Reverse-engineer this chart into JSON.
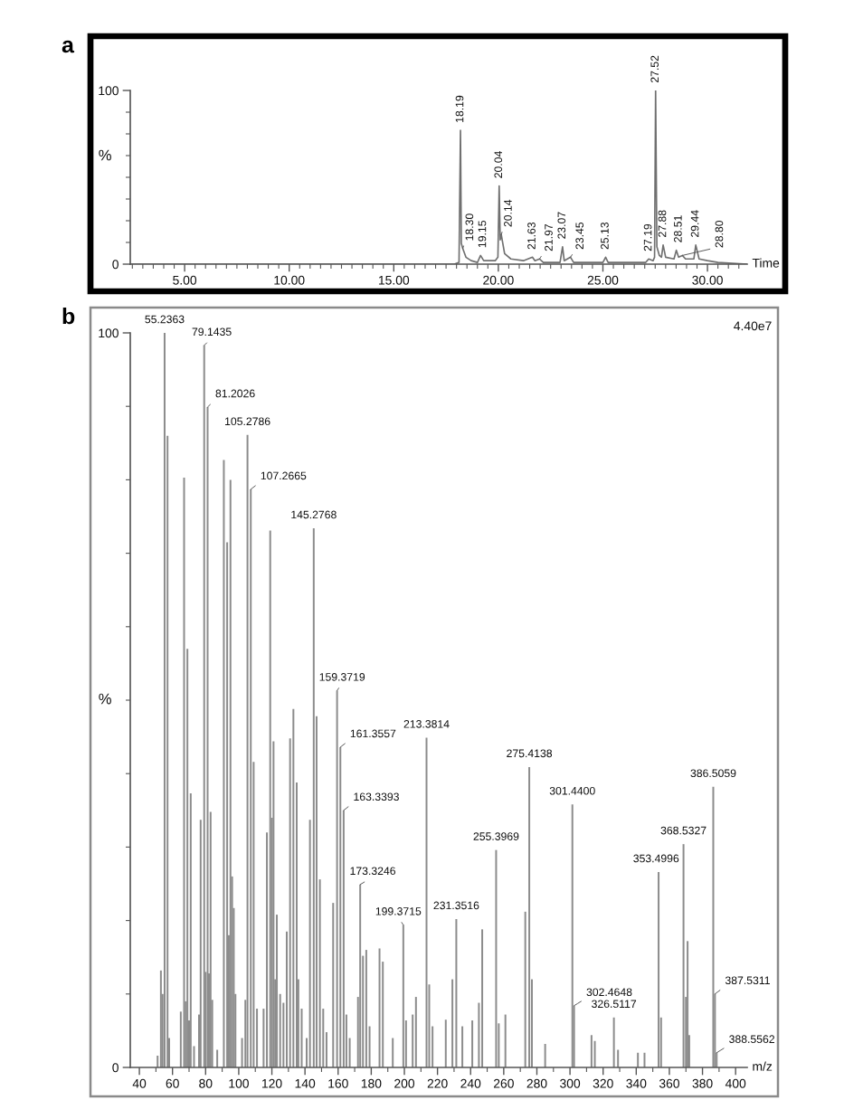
{
  "chart_data": [
    {
      "type": "line",
      "title": "a",
      "xlabel": "Time",
      "ylabel": "%",
      "color": "#707070",
      "x": [
        2.4,
        17.9,
        18.12,
        18.19,
        18.23,
        18.3,
        18.45,
        18.7,
        19.0,
        19.15,
        19.3,
        19.85,
        19.98,
        20.04,
        20.09,
        20.14,
        20.3,
        20.6,
        21.2,
        21.63,
        21.75,
        21.97,
        22.15,
        22.95,
        23.07,
        23.15,
        23.45,
        23.6,
        25.0,
        25.13,
        25.25,
        27.05,
        27.19,
        27.4,
        27.47,
        27.52,
        27.58,
        27.7,
        27.8,
        27.88,
        28.0,
        28.4,
        28.51,
        28.62,
        28.8,
        28.95,
        29.35,
        29.44,
        29.6,
        30.0,
        30.5,
        31.9
      ],
      "values": [
        0,
        0,
        1,
        77,
        12,
        9,
        4,
        2,
        1,
        5,
        2,
        2,
        4,
        45,
        14,
        17,
        6,
        3,
        2,
        4,
        2,
        3,
        1,
        1,
        10,
        2,
        4,
        1,
        1,
        4,
        1,
        1,
        3,
        2,
        4,
        100,
        10,
        5,
        4,
        11,
        4,
        3,
        8,
        4,
        5,
        3,
        3,
        11,
        3,
        2,
        1,
        0
      ],
      "xlim": [
        2.4,
        31.9
      ],
      "ylim": [
        0,
        100
      ],
      "xticks": [
        {
          "value": 2.5,
          "label": null
        },
        {
          "value": 3,
          "label": null
        },
        {
          "value": 3.5,
          "label": null
        },
        {
          "value": 4,
          "label": null
        },
        {
          "value": 4.5,
          "label": null
        },
        {
          "value": 5,
          "label": "5.00"
        },
        {
          "value": 5.5,
          "label": null
        },
        {
          "value": 6,
          "label": null
        },
        {
          "value": 6.5,
          "label": null
        },
        {
          "value": 7,
          "label": null
        },
        {
          "value": 7.5,
          "label": null
        },
        {
          "value": 8,
          "label": null
        },
        {
          "value": 8.5,
          "label": null
        },
        {
          "value": 9,
          "label": null
        },
        {
          "value": 9.5,
          "label": null
        },
        {
          "value": 10,
          "label": "10.00"
        },
        {
          "value": 10.5,
          "label": null
        },
        {
          "value": 11,
          "label": null
        },
        {
          "value": 11.5,
          "label": null
        },
        {
          "value": 12,
          "label": null
        },
        {
          "value": 12.5,
          "label": null
        },
        {
          "value": 13,
          "label": null
        },
        {
          "value": 13.5,
          "label": null
        },
        {
          "value": 14,
          "label": null
        },
        {
          "value": 14.5,
          "label": null
        },
        {
          "value": 15,
          "label": "15.00"
        },
        {
          "value": 15.5,
          "label": null
        },
        {
          "value": 16,
          "label": null
        },
        {
          "value": 16.5,
          "label": null
        },
        {
          "value": 17,
          "label": null
        },
        {
          "value": 17.5,
          "label": null
        },
        {
          "value": 18,
          "label": null
        },
        {
          "value": 18.5,
          "label": null
        },
        {
          "value": 19,
          "label": null
        },
        {
          "value": 19.5,
          "label": null
        },
        {
          "value": 20,
          "label": "20.00"
        },
        {
          "value": 20.5,
          "label": null
        },
        {
          "value": 21,
          "label": null
        },
        {
          "value": 21.5,
          "label": null
        },
        {
          "value": 22,
          "label": null
        },
        {
          "value": 22.5,
          "label": null
        },
        {
          "value": 23,
          "label": null
        },
        {
          "value": 23.5,
          "label": null
        },
        {
          "value": 24,
          "label": null
        },
        {
          "value": 24.5,
          "label": null
        },
        {
          "value": 25,
          "label": "25.00"
        },
        {
          "value": 25.5,
          "label": null
        },
        {
          "value": 26,
          "label": null
        },
        {
          "value": 26.5,
          "label": null
        },
        {
          "value": 27,
          "label": null
        },
        {
          "value": 27.5,
          "label": null
        },
        {
          "value": 28,
          "label": null
        },
        {
          "value": 28.5,
          "label": null
        },
        {
          "value": 29,
          "label": null
        },
        {
          "value": 29.5,
          "label": null
        },
        {
          "value": 30,
          "label": "30.00"
        },
        {
          "value": 30.5,
          "label": null
        },
        {
          "value": 31,
          "label": null
        },
        {
          "value": 31.5,
          "label": null
        }
      ],
      "yticks": [
        0,
        {
          "value": 12.5,
          "label": null
        },
        {
          "value": 25,
          "label": null
        },
        {
          "value": 37.5,
          "label": null
        },
        {
          "value": 50,
          "label": null
        },
        {
          "value": 62.5,
          "label": null
        },
        {
          "value": 75,
          "label": null
        },
        {
          "value": 87.5,
          "label": null
        },
        100
      ],
      "annotations": [
        {
          "text": "18.19",
          "x": 18.19,
          "y": 77
        },
        {
          "text": "18.30",
          "x": 18.3,
          "y": 9
        },
        {
          "text": "19.15",
          "x": 19.15,
          "y": 5
        },
        {
          "text": "20.04",
          "x": 20.04,
          "y": 45
        },
        {
          "text": "20.14",
          "x": 20.14,
          "y": 17
        },
        {
          "text": "21.63",
          "x": 21.63,
          "y": 4
        },
        {
          "text": "21.97",
          "x": 21.97,
          "y": 3
        },
        {
          "text": "23.07",
          "x": 23.07,
          "y": 10
        },
        {
          "text": "23.45",
          "x": 23.45,
          "y": 4
        },
        {
          "text": "25.13",
          "x": 25.13,
          "y": 4
        },
        {
          "text": "27.19",
          "x": 27.19,
          "y": 3
        },
        {
          "text": "27.52",
          "x": 27.52,
          "y": 100
        },
        {
          "text": "27.88",
          "x": 27.88,
          "y": 11
        },
        {
          "text": "28.51",
          "x": 28.51,
          "y": 8
        },
        {
          "text": "28.80",
          "x": 28.8,
          "y": 5
        },
        {
          "text": "29.44",
          "x": 29.44,
          "y": 11
        }
      ]
    },
    {
      "type": "bar",
      "title": "b",
      "xlabel": "m/z",
      "ylabel": "%",
      "color": "#8c8c8c",
      "x": [
        51,
        53,
        54,
        55.2363,
        57,
        58,
        65,
        67,
        68,
        69,
        70,
        71,
        73,
        76,
        77,
        79.1435,
        80,
        81.2026,
        82,
        83,
        84,
        87,
        91,
        93,
        94,
        95,
        96,
        97,
        98,
        102,
        104,
        105.2786,
        107.2665,
        109,
        111,
        115,
        117,
        119,
        120,
        121,
        122,
        123,
        125,
        127,
        129,
        131,
        133,
        135,
        136,
        138,
        141,
        143,
        145.2768,
        147,
        149,
        151,
        153,
        157,
        159.3719,
        161.3557,
        163.3393,
        165,
        167,
        172,
        173.3246,
        175,
        177,
        179,
        185,
        187,
        193,
        199.3715,
        201,
        205,
        207,
        213.3814,
        215,
        217,
        225,
        229,
        231.3516,
        235,
        241,
        245,
        247,
        255.3969,
        257,
        261,
        273,
        275.4138,
        277,
        285,
        301.44,
        302.4648,
        313,
        315,
        326.5117,
        329,
        341,
        345,
        353.4996,
        355,
        368.5327,
        370,
        371,
        372,
        386.5059,
        387.5311,
        388.5562
      ],
      "values": [
        1.6,
        13.2,
        10,
        100,
        86,
        4,
        7.6,
        80.3,
        9,
        57,
        6.4,
        37.3,
        2.9,
        7.2,
        33.7,
        98.3,
        13,
        89.9,
        12.8,
        34.8,
        9.2,
        2.4,
        82.7,
        71.5,
        18,
        80,
        26,
        21.7,
        10,
        4,
        9.2,
        86.1,
        78.7,
        41.6,
        8,
        8,
        32,
        73.1,
        34,
        44.4,
        12,
        20.8,
        10,
        8.8,
        18.5,
        44.8,
        48.8,
        38.8,
        12,
        8,
        4,
        33.7,
        73.4,
        47.8,
        25.6,
        8,
        4.8,
        22.4,
        51.3,
        43.6,
        35,
        7.2,
        4,
        9.6,
        24.9,
        15.2,
        16,
        5.6,
        16.2,
        14.4,
        4,
        19.4,
        6.4,
        7.2,
        9.6,
        44.9,
        11.3,
        5.6,
        6.5,
        12,
        20.2,
        5.6,
        6.4,
        8.8,
        18.8,
        29.6,
        6,
        7.2,
        21.2,
        40.9,
        12,
        3.2,
        35.8,
        8.4,
        4.4,
        3.6,
        6.8,
        2.4,
        2,
        2,
        26.6,
        6.8,
        30.4,
        9.6,
        17.2,
        4.4,
        38.2,
        10,
        2
      ],
      "xlim": [
        34.5,
        407
      ],
      "ylim": [
        0,
        100
      ],
      "xticks": [
        40,
        {
          "value": 50,
          "label": null
        },
        60,
        {
          "value": 70,
          "label": null
        },
        80,
        {
          "value": 90,
          "label": null
        },
        100,
        {
          "value": 110,
          "label": null
        },
        120,
        {
          "value": 130,
          "label": null
        },
        140,
        {
          "value": 150,
          "label": null
        },
        160,
        {
          "value": 170,
          "label": null
        },
        180,
        {
          "value": 190,
          "label": null
        },
        200,
        {
          "value": 210,
          "label": null
        },
        220,
        {
          "value": 230,
          "label": null
        },
        240,
        {
          "value": 250,
          "label": null
        },
        260,
        {
          "value": 270,
          "label": null
        },
        280,
        {
          "value": 290,
          "label": null
        },
        300,
        {
          "value": 310,
          "label": null
        },
        320,
        {
          "value": 330,
          "label": null
        },
        340,
        {
          "value": 350,
          "label": null
        },
        360,
        {
          "value": 370,
          "label": null
        },
        380,
        {
          "value": 390,
          "label": null
        },
        400
      ],
      "yticks": [
        0,
        {
          "value": 10,
          "label": null
        },
        {
          "value": 20,
          "label": null
        },
        {
          "value": 30,
          "label": null
        },
        {
          "value": 40,
          "label": null
        },
        {
          "value": 50,
          "label": null
        },
        {
          "value": 60,
          "label": null
        },
        {
          "value": 70,
          "label": null
        },
        {
          "value": 80,
          "label": null
        },
        {
          "value": 90,
          "label": null
        },
        100
      ],
      "annotations": [
        "4.40e7",
        {
          "text": "55.2363",
          "x": 55.2363,
          "y": 100
        },
        {
          "text": "79.1435",
          "x": 79.1435,
          "y": 98.3
        },
        {
          "text": "81.2026",
          "x": 81.2026,
          "y": 89.9
        },
        {
          "text": "105.2786",
          "x": 105.2786,
          "y": 86.1
        },
        {
          "text": "107.2665",
          "x": 107.2665,
          "y": 78.7
        },
        {
          "text": "145.2768",
          "x": 145.2768,
          "y": 73.4
        },
        {
          "text": "159.3719",
          "x": 159.3719,
          "y": 51.3
        },
        {
          "text": "161.3557",
          "x": 161.3557,
          "y": 43.6
        },
        {
          "text": "163.3393",
          "x": 163.3393,
          "y": 35
        },
        {
          "text": "173.3246",
          "x": 173.3246,
          "y": 24.9
        },
        {
          "text": "199.3715",
          "x": 199.3715,
          "y": 19.4
        },
        {
          "text": "213.3814",
          "x": 213.3814,
          "y": 44.9
        },
        {
          "text": "231.3516",
          "x": 231.3516,
          "y": 20.2
        },
        {
          "text": "255.3969",
          "x": 255.3969,
          "y": 29.6
        },
        {
          "text": "275.4138",
          "x": 275.4138,
          "y": 40.9
        },
        {
          "text": "301.4400",
          "x": 301.44,
          "y": 35.8
        },
        {
          "text": "302.4648",
          "x": 302.4648,
          "y": 8.4
        },
        {
          "text": "326.5117",
          "x": 326.5117,
          "y": 6.8
        },
        {
          "text": "353.4996",
          "x": 353.4996,
          "y": 26.6
        },
        {
          "text": "368.5327",
          "x": 368.5327,
          "y": 30.4
        },
        {
          "text": "386.5059",
          "x": 386.5059,
          "y": 38.2
        },
        {
          "text": "387.5311",
          "x": 387.5311,
          "y": 10
        },
        {
          "text": "388.5562",
          "x": 388.5562,
          "y": 2
        }
      ]
    }
  ]
}
